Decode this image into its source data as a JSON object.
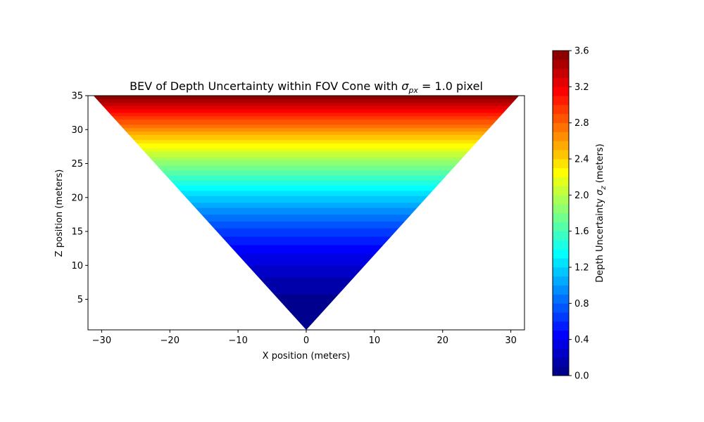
{
  "chart_data": {
    "type": "heatmap",
    "title": "BEV of Depth Uncertainty within FOV Cone with ",
    "title_symbol": "σ",
    "title_subscript": "px",
    "title_suffix": " = 1.0 pixel",
    "xlabel": "X position (meters)",
    "ylabel": "Z position (meters)",
    "xlim": [
      -32,
      32
    ],
    "ylim": [
      0.5,
      35
    ],
    "x_ticks": [
      -30,
      -20,
      -10,
      0,
      10,
      20,
      30
    ],
    "x_tick_labels": [
      "−30",
      "−20",
      "−10",
      "0",
      "10",
      "20",
      "30"
    ],
    "y_ticks": [
      5,
      10,
      15,
      20,
      25,
      30,
      35
    ],
    "y_tick_labels": [
      "5",
      "10",
      "15",
      "20",
      "25",
      "30",
      "35"
    ],
    "fov_cone": {
      "apex": [
        0,
        0.5
      ],
      "left_edge_at_top": [
        -31.2,
        35
      ],
      "right_edge_at_top": [
        31.2,
        35
      ]
    },
    "uncertainty_model": "sigma_z = k * z^2",
    "uncertainty_k": 0.00294,
    "colormap": "jet",
    "colorbar": {
      "label_prefix": "Depth Uncertainty ",
      "label_symbol": "σ",
      "label_subscript": "z",
      "label_suffix": " (meters)",
      "min": 0.0,
      "max": 3.6,
      "levels": 36,
      "ticks": [
        0.0,
        0.4,
        0.8,
        1.2,
        1.6,
        2.0,
        2.4,
        2.8,
        3.2,
        3.6
      ],
      "tick_labels": [
        "0.0",
        "0.4",
        "0.8",
        "1.2",
        "1.6",
        "2.0",
        "2.4",
        "2.8",
        "3.2",
        "3.6"
      ]
    },
    "grid": false
  }
}
